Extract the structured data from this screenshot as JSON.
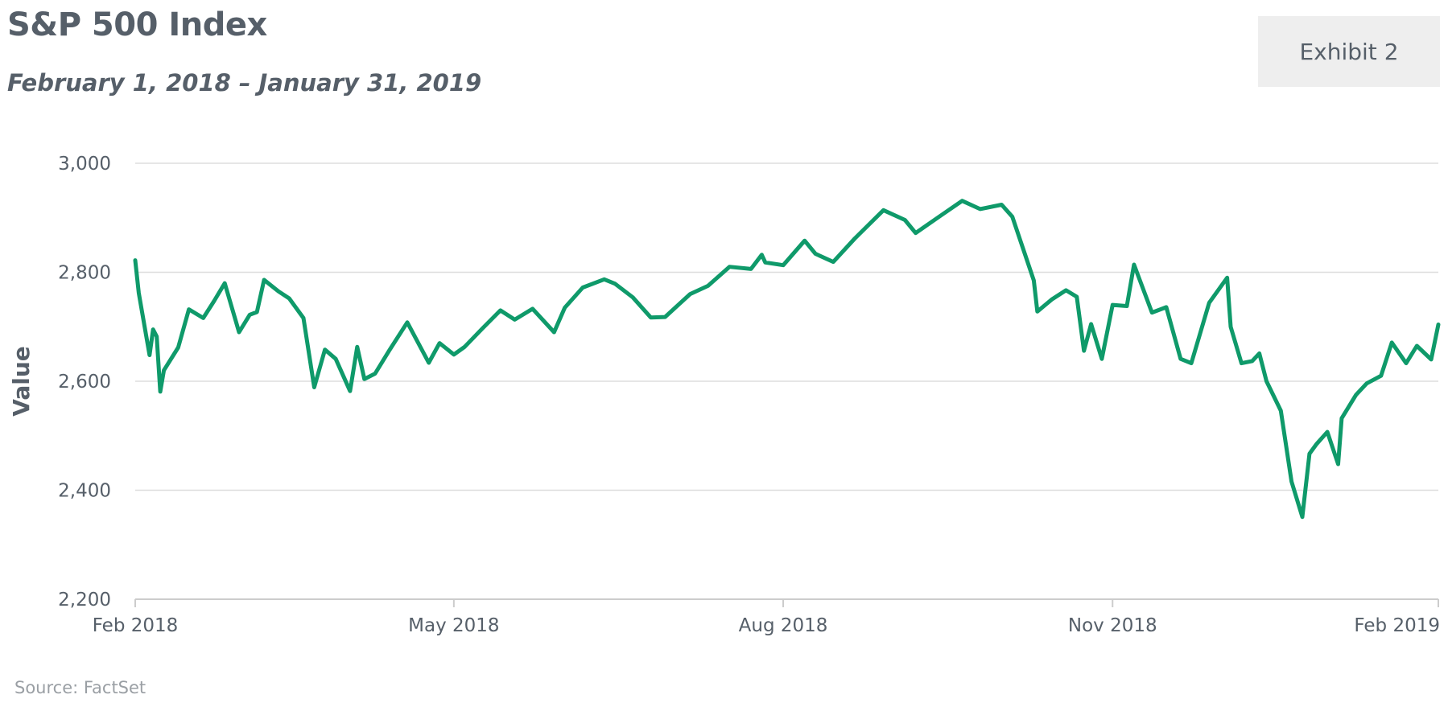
{
  "header": {
    "title": "S&P 500 Index",
    "subtitle": "February 1, 2018 – January 31, 2019",
    "exhibit": "Exhibit 2"
  },
  "footer": {
    "source": "Source: FactSet"
  },
  "colors": {
    "line": "#0f9a6a",
    "grid": "#dddddd",
    "text": "#565f69",
    "exhibit_bg": "#eeeeee"
  },
  "chart_data": {
    "type": "line",
    "title": "S&P 500 Index",
    "subtitle": "February 1, 2018 – January 31, 2019",
    "ylabel": "Value",
    "xlabel": "",
    "ylim": [
      2200,
      3000
    ],
    "yticks": [
      2200,
      2400,
      2600,
      2800,
      3000
    ],
    "ytick_labels": [
      "2,200",
      "2,400",
      "2,600",
      "2,800",
      "3,000"
    ],
    "xlim": [
      "2018-02-01",
      "2019-01-31"
    ],
    "xticks": [
      "2018-02-01",
      "2018-05-01",
      "2018-08-01",
      "2018-11-01",
      "2019-02-01"
    ],
    "xtick_labels": [
      "Feb 2018",
      "May 2018",
      "Aug 2018",
      "Nov 2018",
      "Feb 2019"
    ],
    "grid": true,
    "legend": false,
    "series": [
      {
        "x": [
          "2018-02-01",
          "2018-02-02",
          "2018-02-05",
          "2018-02-06",
          "2018-02-07",
          "2018-02-08",
          "2018-02-09",
          "2018-02-13",
          "2018-02-16",
          "2018-02-20",
          "2018-02-23",
          "2018-02-26",
          "2018-03-02",
          "2018-03-05",
          "2018-03-07",
          "2018-03-09",
          "2018-03-13",
          "2018-03-16",
          "2018-03-20",
          "2018-03-23",
          "2018-03-26",
          "2018-03-29",
          "2018-04-02",
          "2018-04-04",
          "2018-04-06",
          "2018-04-09",
          "2018-04-13",
          "2018-04-18",
          "2018-04-24",
          "2018-04-27",
          "2018-05-01",
          "2018-05-04",
          "2018-05-09",
          "2018-05-14",
          "2018-05-18",
          "2018-05-23",
          "2018-05-29",
          "2018-06-01",
          "2018-06-06",
          "2018-06-12",
          "2018-06-15",
          "2018-06-20",
          "2018-06-25",
          "2018-06-29",
          "2018-07-06",
          "2018-07-11",
          "2018-07-17",
          "2018-07-23",
          "2018-07-26",
          "2018-07-27",
          "2018-08-01",
          "2018-08-07",
          "2018-08-10",
          "2018-08-15",
          "2018-08-21",
          "2018-08-29",
          "2018-09-04",
          "2018-09-07",
          "2018-09-14",
          "2018-09-20",
          "2018-09-25",
          "2018-10-01",
          "2018-10-04",
          "2018-10-10",
          "2018-10-11",
          "2018-10-15",
          "2018-10-19",
          "2018-10-22",
          "2018-10-24",
          "2018-10-26",
          "2018-10-29",
          "2018-11-01",
          "2018-11-05",
          "2018-11-07",
          "2018-11-12",
          "2018-11-16",
          "2018-11-20",
          "2018-11-23",
          "2018-11-28",
          "2018-12-03",
          "2018-12-04",
          "2018-12-07",
          "2018-12-10",
          "2018-12-12",
          "2018-12-14",
          "2018-12-18",
          "2018-12-21",
          "2018-12-24",
          "2018-12-26",
          "2018-12-28",
          "2018-12-31",
          "2019-01-03",
          "2019-01-04",
          "2019-01-08",
          "2019-01-11",
          "2019-01-15",
          "2019-01-18",
          "2019-01-22",
          "2019-01-25",
          "2019-01-29",
          "2019-01-31"
        ],
        "y": [
          2822,
          2762,
          2648,
          2695,
          2682,
          2581,
          2620,
          2662,
          2732,
          2716,
          2747,
          2780,
          2690,
          2722,
          2727,
          2786,
          2765,
          2752,
          2716,
          2589,
          2658,
          2641,
          2582,
          2663,
          2604,
          2614,
          2657,
          2708,
          2634,
          2670,
          2649,
          2663,
          2697,
          2730,
          2713,
          2733,
          2690,
          2735,
          2772,
          2787,
          2779,
          2754,
          2717,
          2718,
          2760,
          2775,
          2810,
          2806,
          2832,
          2818,
          2813,
          2858,
          2834,
          2819,
          2862,
          2914,
          2896,
          2872,
          2904,
          2931,
          2916,
          2924,
          2902,
          2785,
          2728,
          2750,
          2767,
          2755,
          2656,
          2705,
          2641,
          2740,
          2738,
          2814,
          2726,
          2736,
          2641,
          2633,
          2744,
          2790,
          2700,
          2633,
          2637,
          2651,
          2600,
          2546,
          2416,
          2351,
          2467,
          2485,
          2507,
          2448,
          2532,
          2575,
          2596,
          2610,
          2671,
          2633,
          2665,
          2640,
          2704
        ]
      }
    ]
  }
}
